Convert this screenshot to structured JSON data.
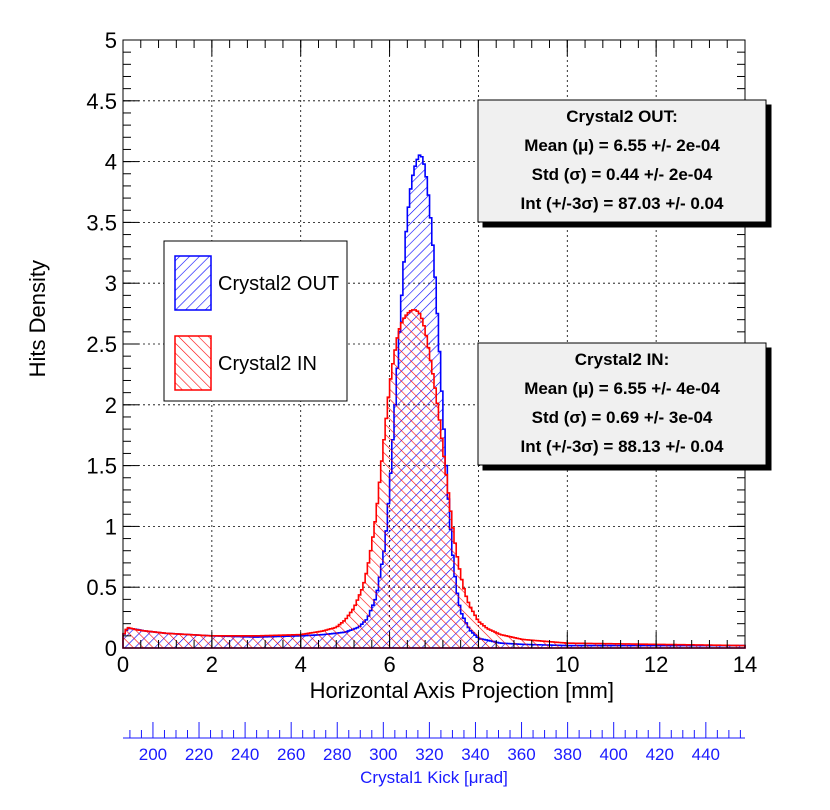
{
  "chart_data": {
    "type": "histogram",
    "xlabel": "Horizontal Axis Projection [mm]",
    "ylabel": "Hits Density",
    "xlim": [
      0,
      14
    ],
    "ylim": [
      0,
      5
    ],
    "x_ticks": [
      "0",
      "2",
      "4",
      "6",
      "8",
      "10",
      "12",
      "14"
    ],
    "y_ticks": [
      "0",
      "0.5",
      "1",
      "1.5",
      "2",
      "2.5",
      "3",
      "3.5",
      "4",
      "4.5",
      "5"
    ],
    "grid": true,
    "legend_position": "middle-left",
    "series": [
      {
        "name": "Crystal2 OUT",
        "color": "#0000ff",
        "points": [
          [
            0,
            0.1
          ],
          [
            0.1,
            0.16
          ],
          [
            0.2,
            0.16
          ],
          [
            0.5,
            0.14
          ],
          [
            1,
            0.12
          ],
          [
            2,
            0.1
          ],
          [
            3,
            0.09
          ],
          [
            4,
            0.1
          ],
          [
            4.5,
            0.11
          ],
          [
            5,
            0.13
          ],
          [
            5.3,
            0.17
          ],
          [
            5.5,
            0.24
          ],
          [
            5.7,
            0.42
          ],
          [
            5.9,
            0.85
          ],
          [
            6.0,
            1.3
          ],
          [
            6.1,
            1.85
          ],
          [
            6.2,
            2.45
          ],
          [
            6.3,
            3.05
          ],
          [
            6.4,
            3.55
          ],
          [
            6.5,
            3.85
          ],
          [
            6.6,
            4.0
          ],
          [
            6.7,
            4.07
          ],
          [
            6.8,
            3.95
          ],
          [
            6.9,
            3.65
          ],
          [
            7.0,
            3.2
          ],
          [
            7.1,
            2.6
          ],
          [
            7.2,
            1.95
          ],
          [
            7.3,
            1.35
          ],
          [
            7.4,
            0.85
          ],
          [
            7.5,
            0.5
          ],
          [
            7.6,
            0.3
          ],
          [
            7.8,
            0.15
          ],
          [
            8.0,
            0.08
          ],
          [
            8.5,
            0.04
          ],
          [
            9,
            0.03
          ],
          [
            10,
            0.02
          ],
          [
            14,
            0.02
          ]
        ]
      },
      {
        "name": "Crystal2 IN",
        "color": "#ff0000",
        "points": [
          [
            0,
            0.1
          ],
          [
            0.1,
            0.17
          ],
          [
            0.3,
            0.15
          ],
          [
            0.5,
            0.14
          ],
          [
            1,
            0.12
          ],
          [
            2,
            0.1
          ],
          [
            3,
            0.1
          ],
          [
            4,
            0.11
          ],
          [
            4.5,
            0.14
          ],
          [
            4.8,
            0.17
          ],
          [
            5.0,
            0.23
          ],
          [
            5.2,
            0.33
          ],
          [
            5.4,
            0.5
          ],
          [
            5.5,
            0.65
          ],
          [
            5.6,
            0.85
          ],
          [
            5.7,
            1.1
          ],
          [
            5.8,
            1.45
          ],
          [
            5.9,
            1.8
          ],
          [
            6.0,
            2.15
          ],
          [
            6.1,
            2.4
          ],
          [
            6.2,
            2.6
          ],
          [
            6.3,
            2.7
          ],
          [
            6.4,
            2.75
          ],
          [
            6.5,
            2.78
          ],
          [
            6.6,
            2.78
          ],
          [
            6.7,
            2.74
          ],
          [
            6.8,
            2.62
          ],
          [
            6.9,
            2.42
          ],
          [
            7.0,
            2.2
          ],
          [
            7.1,
            1.95
          ],
          [
            7.2,
            1.65
          ],
          [
            7.3,
            1.35
          ],
          [
            7.4,
            1.05
          ],
          [
            7.5,
            0.8
          ],
          [
            7.6,
            0.6
          ],
          [
            7.7,
            0.45
          ],
          [
            7.8,
            0.35
          ],
          [
            8.0,
            0.22
          ],
          [
            8.2,
            0.16
          ],
          [
            8.5,
            0.11
          ],
          [
            9,
            0.07
          ],
          [
            10,
            0.04
          ],
          [
            14,
            0.02
          ]
        ]
      }
    ],
    "secondary_axis": {
      "label": "Crystal1 Kick [μrad]",
      "min": 187,
      "max": 457,
      "ticks": [
        "200",
        "220",
        "240",
        "260",
        "280",
        "300",
        "320",
        "340",
        "360",
        "380",
        "400",
        "420",
        "440"
      ],
      "color": "#1a1aff"
    },
    "stats_boxes": [
      {
        "title": "Crystal2 OUT:",
        "lines": [
          "Mean (μ) = 6.55 +/- 2e-04",
          "Std (σ) = 0.44 +/- 2e-04",
          "Int (+/-3σ) = 87.03 +/- 0.04"
        ]
      },
      {
        "title": "Crystal2 IN:",
        "lines": [
          "Mean (μ) = 6.55 +/- 4e-04",
          "Std (σ) = 0.69 +/- 3e-04",
          "Int (+/-3σ) = 88.13 +/- 0.04"
        ]
      }
    ]
  }
}
